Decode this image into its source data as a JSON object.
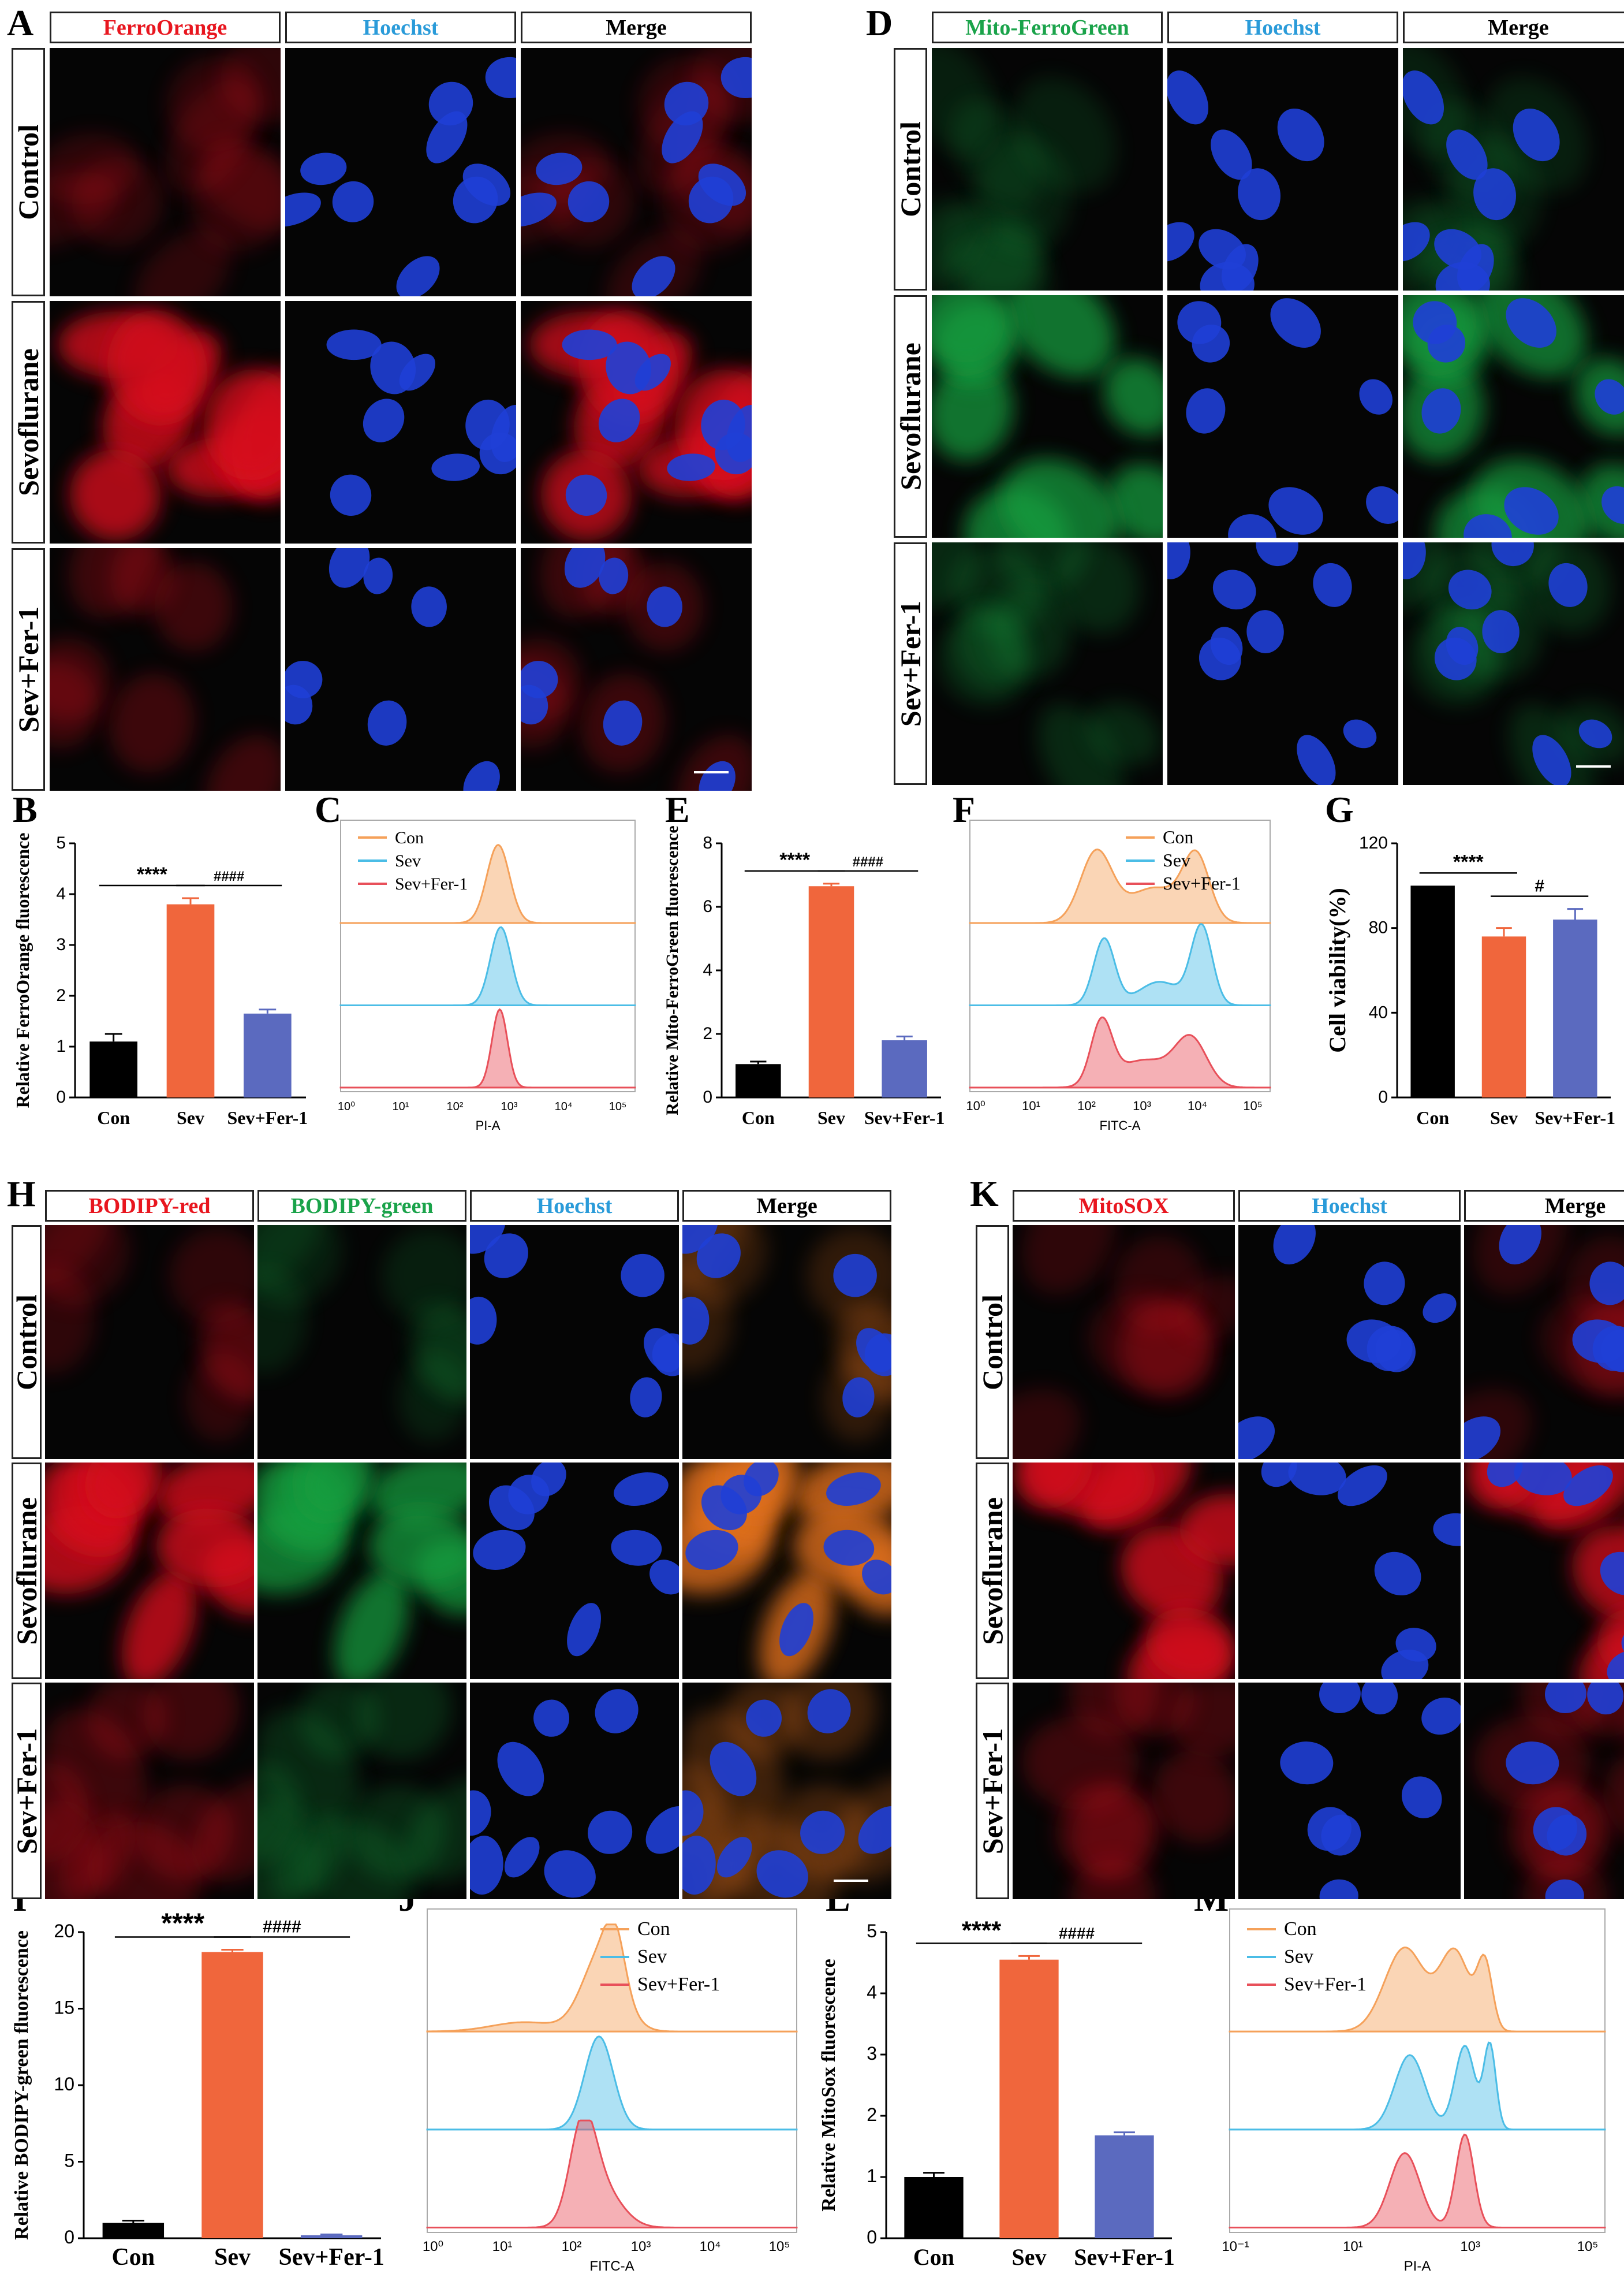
{
  "colors": {
    "ferro": "#e8161f",
    "hoechst": "#2a9bd9",
    "mito": "#1aa34a",
    "merge": "#000000",
    "bar_con": "#000000",
    "bar_sev": "#f0663c",
    "bar_fer": "#5b6abf",
    "hist_con": "#f5a15a",
    "hist_sev": "#4bbde6",
    "hist_fer": "#e8505a"
  },
  "panels": {
    "A": {
      "label": "A",
      "cols": [
        "FerroOrange",
        "Hoechst",
        "Merge"
      ],
      "rows": [
        "Control",
        "Sevoflurane",
        "Sev+Fer-1"
      ]
    },
    "D": {
      "label": "D",
      "cols": [
        "Mito-FerroGreen",
        "Hoechst",
        "Merge"
      ],
      "rows": [
        "Control",
        "Sevoflurane",
        "Sev+Fer-1"
      ]
    },
    "H": {
      "label": "H",
      "cols": [
        "BODIPY-red",
        "BODIPY-green",
        "Hoechst",
        "Merge"
      ],
      "rows": [
        "Control",
        "Sevoflurane",
        "Sev+Fer-1"
      ]
    },
    "K": {
      "label": "K",
      "cols": [
        "MitoSOX",
        "Hoechst",
        "Merge"
      ],
      "rows": [
        "Control",
        "Sevoflurane",
        "Sev+Fer-1"
      ]
    }
  },
  "chart_data": [
    {
      "id": "B",
      "label": "B",
      "type": "bar",
      "categories": [
        "Con",
        "Sev",
        "Sev+Fer-1"
      ],
      "values": [
        1.1,
        3.8,
        1.65
      ],
      "errors": [
        0.15,
        0.12,
        0.08
      ],
      "ylabel": "Relative FerroOrange  fluorescence",
      "ylim": [
        0,
        5
      ],
      "yticks": [
        "0",
        "1",
        "2",
        "3",
        "4",
        "5"
      ],
      "sig": [
        {
          "text": "****",
          "from": 0,
          "to": 1
        },
        {
          "text": "####",
          "from": 1,
          "to": 2
        }
      ]
    },
    {
      "id": "C",
      "label": "C",
      "type": "area",
      "xlabel": "PI-A",
      "legend": [
        "Con",
        "Sev",
        "Sev+Fer-1"
      ],
      "xticks": [
        "10⁰",
        "10¹",
        "10²",
        "10³",
        "10⁴",
        "10⁵"
      ]
    },
    {
      "id": "E",
      "label": "E",
      "type": "bar",
      "categories": [
        "Con",
        "Sev",
        "Sev+Fer-1"
      ],
      "values": [
        1.05,
        6.65,
        1.8
      ],
      "errors": [
        0.08,
        0.08,
        0.12
      ],
      "ylabel": "Relative Mito-FerroGreen fluorescence",
      "ylim": [
        0,
        8
      ],
      "yticks": [
        "0",
        "2",
        "4",
        "6",
        "8"
      ],
      "sig": [
        {
          "text": "****",
          "from": 0,
          "to": 1
        },
        {
          "text": "####",
          "from": 1,
          "to": 2
        }
      ]
    },
    {
      "id": "F",
      "label": "F",
      "type": "area",
      "xlabel": "FITC-A",
      "legend": [
        "Con",
        "Sev",
        "Sev+Fer-1"
      ],
      "xticks": [
        "10⁰",
        "10¹",
        "10²",
        "10³",
        "10⁴",
        "10⁵"
      ]
    },
    {
      "id": "G",
      "label": "G",
      "type": "bar",
      "categories": [
        "Con",
        "Sev",
        "Sev+Fer-1"
      ],
      "values": [
        100,
        76,
        84
      ],
      "errors": [
        0,
        4,
        5
      ],
      "ylabel": "Cell viability(%)",
      "ylim": [
        0,
        120
      ],
      "yticks": [
        "0",
        "40",
        "80",
        "120"
      ],
      "sig": [
        {
          "text": "****",
          "from": 0,
          "to": 1
        },
        {
          "text": "#",
          "from": 1,
          "to": 2
        }
      ]
    },
    {
      "id": "I",
      "label": "I",
      "type": "bar",
      "categories": [
        "Con",
        "Sev",
        "Sev+Fer-1"
      ],
      "values": [
        1.0,
        18.7,
        0.2
      ],
      "errors": [
        0.15,
        0.15,
        0.05
      ],
      "ylabel": "Relative BODIPY-green fluorescence",
      "ylim": [
        0,
        20
      ],
      "yticks": [
        "0",
        "5",
        "10",
        "15",
        "20"
      ],
      "sig": [
        {
          "text": "****",
          "from": 0,
          "to": 1
        },
        {
          "text": "####",
          "from": 1,
          "to": 2
        }
      ]
    },
    {
      "id": "J",
      "label": "J",
      "type": "area",
      "xlabel": "FITC-A",
      "legend": [
        "Con",
        "Sev",
        "Sev+Fer-1"
      ],
      "xticks": [
        "10⁰",
        "10¹",
        "10²",
        "10³",
        "10⁴",
        "10⁵"
      ]
    },
    {
      "id": "L",
      "label": "L",
      "type": "bar",
      "categories": [
        "Con",
        "Sev",
        "Sev+Fer-1"
      ],
      "values": [
        1.0,
        4.55,
        1.68
      ],
      "errors": [
        0.07,
        0.06,
        0.05
      ],
      "ylabel": "Relative MitoSox fluorescence",
      "ylim": [
        0,
        5
      ],
      "yticks": [
        "0",
        "1",
        "2",
        "3",
        "4",
        "5"
      ],
      "sig": [
        {
          "text": "****",
          "from": 0,
          "to": 1
        },
        {
          "text": "####",
          "from": 1,
          "to": 2
        }
      ]
    },
    {
      "id": "M",
      "label": "M",
      "type": "area",
      "xlabel": "PI-A",
      "legend": [
        "Con",
        "Sev",
        "Sev+Fer-1"
      ],
      "xticks": [
        "10⁻¹",
        "10¹",
        "10³",
        "10⁵"
      ]
    }
  ]
}
